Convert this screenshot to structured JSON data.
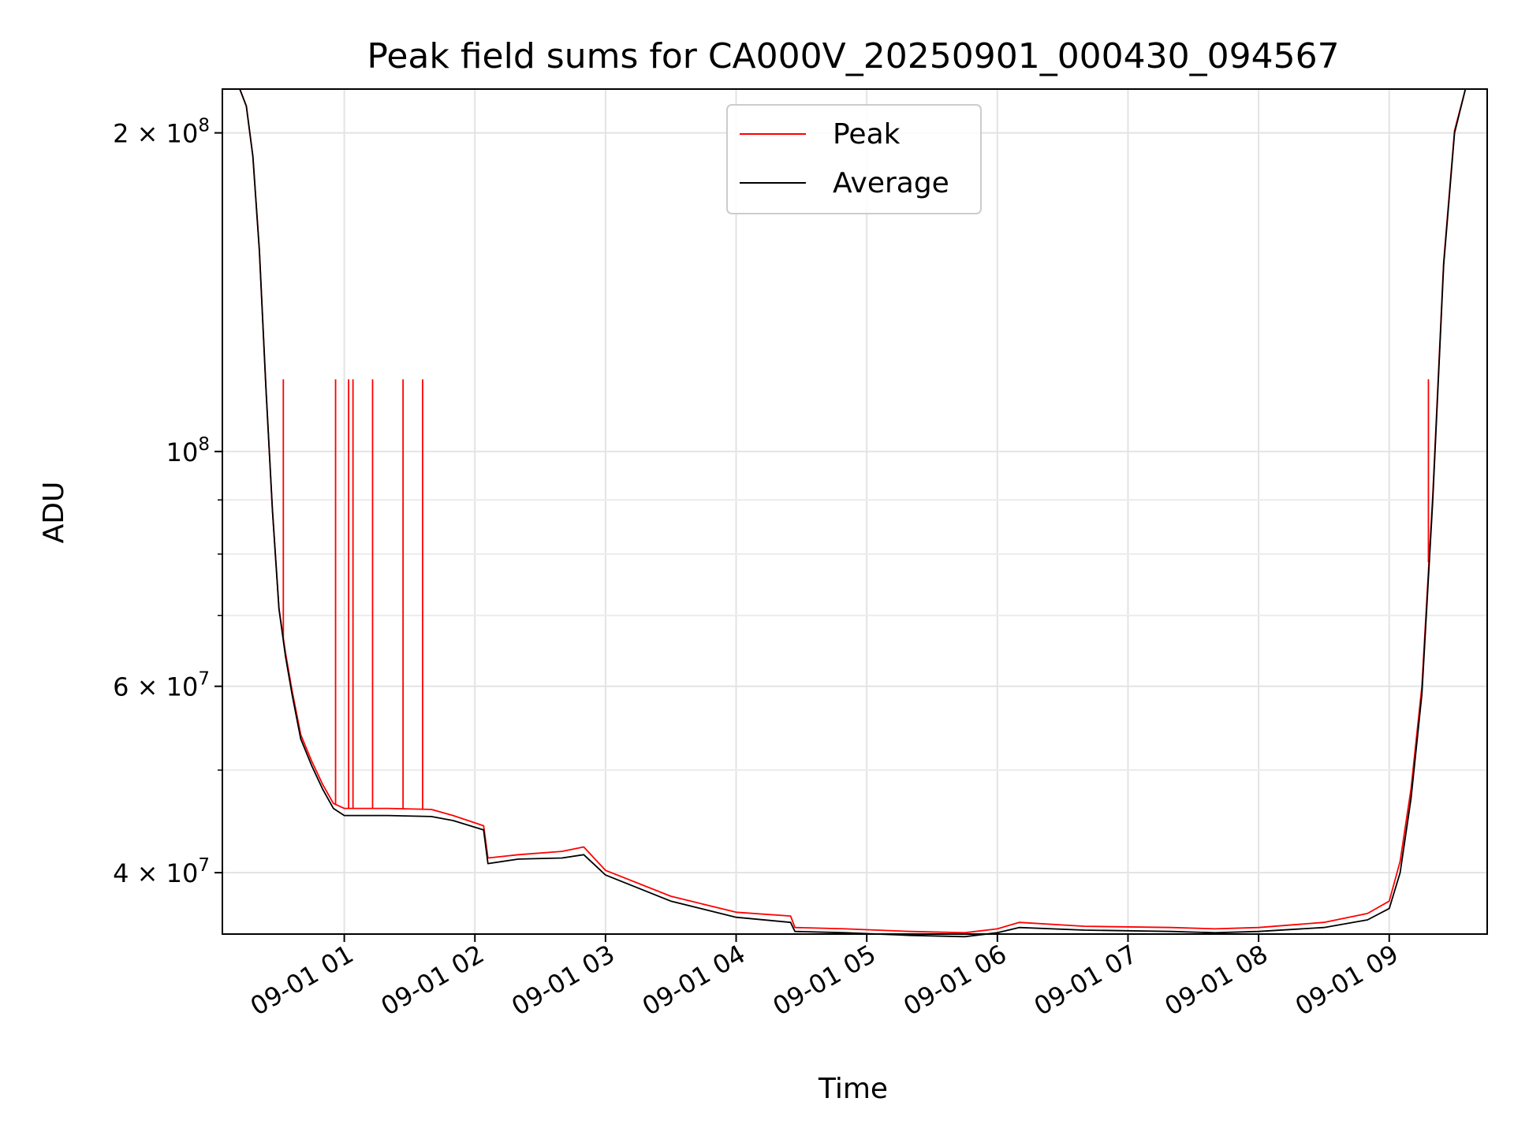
{
  "chart_data": {
    "type": "line",
    "title": "Peak field sums for CA000V_20250901_000430_094567",
    "xlabel": "Time",
    "ylabel": "ADU",
    "xlim": [
      "2025-09-01 00:04",
      "2025-09-01 09:45"
    ],
    "ylim": [
      35000000,
      220000000
    ],
    "yscale": "log",
    "grid": true,
    "legend": {
      "location": "upper center"
    },
    "x_ticks": [
      {
        "value": "2025-09-01 01:00",
        "label": "09-01 01"
      },
      {
        "value": "2025-09-01 02:00",
        "label": "09-01 02"
      },
      {
        "value": "2025-09-01 03:00",
        "label": "09-01 03"
      },
      {
        "value": "2025-09-01 04:00",
        "label": "09-01 04"
      },
      {
        "value": "2025-09-01 05:00",
        "label": "09-01 05"
      },
      {
        "value": "2025-09-01 06:00",
        "label": "09-01 06"
      },
      {
        "value": "2025-09-01 07:00",
        "label": "09-01 07"
      },
      {
        "value": "2025-09-01 08:00",
        "label": "09-01 08"
      },
      {
        "value": "2025-09-01 09:00",
        "label": "09-01 09"
      }
    ],
    "y_ticks": [
      {
        "value": 40000000,
        "base": "4",
        "exp": "7"
      },
      {
        "value": 60000000,
        "base": "6",
        "exp": "7"
      },
      {
        "value": 100000000,
        "base": "",
        "exp": "8"
      },
      {
        "value": 200000000,
        "base": "2",
        "exp": "8"
      }
    ],
    "y_minor_ticks": [
      50000000,
      70000000,
      80000000,
      90000000
    ],
    "series": [
      {
        "name": "Average",
        "color": "#000000",
        "points": [
          [
            "2025-09-01 00:04",
            220000000
          ],
          [
            "2025-09-01 00:12",
            220000000
          ],
          [
            "2025-09-01 00:15",
            212000000
          ],
          [
            "2025-09-01 00:18",
            190000000
          ],
          [
            "2025-09-01 00:21",
            155000000
          ],
          [
            "2025-09-01 00:24",
            115000000
          ],
          [
            "2025-09-01 00:27",
            88000000
          ],
          [
            "2025-09-01 00:30",
            71000000
          ],
          [
            "2025-09-01 00:33",
            64000000
          ],
          [
            "2025-09-01 00:36",
            59000000
          ],
          [
            "2025-09-01 00:40",
            53500000
          ],
          [
            "2025-09-01 00:45",
            50500000
          ],
          [
            "2025-09-01 00:50",
            48000000
          ],
          [
            "2025-09-01 00:55",
            46000000
          ],
          [
            "2025-09-01 01:00",
            45300000
          ],
          [
            "2025-09-01 01:20",
            45300000
          ],
          [
            "2025-09-01 01:40",
            45200000
          ],
          [
            "2025-09-01 01:50",
            44800000
          ],
          [
            "2025-09-01 02:04",
            43900000
          ],
          [
            "2025-09-01 02:06",
            40800000
          ],
          [
            "2025-09-01 02:20",
            41200000
          ],
          [
            "2025-09-01 02:40",
            41300000
          ],
          [
            "2025-09-01 02:50",
            41600000
          ],
          [
            "2025-09-01 03:00",
            39800000
          ],
          [
            "2025-09-01 03:30",
            37600000
          ],
          [
            "2025-09-01 04:00",
            36300000
          ],
          [
            "2025-09-01 04:25",
            35900000
          ],
          [
            "2025-09-01 04:27",
            35200000
          ],
          [
            "2025-09-01 04:50",
            35100000
          ],
          [
            "2025-09-01 05:20",
            34900000
          ],
          [
            "2025-09-01 05:45",
            34800000
          ],
          [
            "2025-09-01 06:00",
            35100000
          ],
          [
            "2025-09-01 06:10",
            35500000
          ],
          [
            "2025-09-01 06:40",
            35300000
          ],
          [
            "2025-09-01 07:20",
            35200000
          ],
          [
            "2025-09-01 07:40",
            35100000
          ],
          [
            "2025-09-01 08:00",
            35200000
          ],
          [
            "2025-09-01 08:30",
            35500000
          ],
          [
            "2025-09-01 08:50",
            36100000
          ],
          [
            "2025-09-01 09:00",
            37000000
          ],
          [
            "2025-09-01 09:05",
            40000000
          ],
          [
            "2025-09-01 09:10",
            47000000
          ],
          [
            "2025-09-01 09:15",
            59000000
          ],
          [
            "2025-09-01 09:20",
            90000000
          ],
          [
            "2025-09-01 09:25",
            150000000
          ],
          [
            "2025-09-01 09:30",
            200000000
          ],
          [
            "2025-09-01 09:35",
            220000000
          ],
          [
            "2025-09-01 09:40",
            220000000
          ]
        ]
      },
      {
        "name": "Peak",
        "color": "#ff0000",
        "points": [
          [
            "2025-09-01 00:04",
            220000000
          ],
          [
            "2025-09-01 00:12",
            220000000
          ],
          [
            "2025-09-01 00:15",
            212000000
          ],
          [
            "2025-09-01 00:18",
            190000000
          ],
          [
            "2025-09-01 00:21",
            155000000
          ],
          [
            "2025-09-01 00:24",
            115000000
          ],
          [
            "2025-09-01 00:27",
            88000000
          ],
          [
            "2025-09-01 00:30",
            71000000
          ],
          [
            "2025-09-01 00:33",
            64500000
          ],
          [
            "2025-09-01 00:36",
            59500000
          ],
          [
            "2025-09-01 00:40",
            54000000
          ],
          [
            "2025-09-01 00:45",
            51000000
          ],
          [
            "2025-09-01 00:50",
            48500000
          ],
          [
            "2025-09-01 00:55",
            46500000
          ],
          [
            "2025-09-01 01:00",
            46000000
          ],
          [
            "2025-09-01 01:20",
            46000000
          ],
          [
            "2025-09-01 01:40",
            45900000
          ],
          [
            "2025-09-01 01:50",
            45300000
          ],
          [
            "2025-09-01 02:04",
            44300000
          ],
          [
            "2025-09-01 02:06",
            41300000
          ],
          [
            "2025-09-01 02:20",
            41600000
          ],
          [
            "2025-09-01 02:40",
            41900000
          ],
          [
            "2025-09-01 02:50",
            42300000
          ],
          [
            "2025-09-01 03:00",
            40200000
          ],
          [
            "2025-09-01 03:30",
            38000000
          ],
          [
            "2025-09-01 04:00",
            36700000
          ],
          [
            "2025-09-01 04:25",
            36400000
          ],
          [
            "2025-09-01 04:27",
            35500000
          ],
          [
            "2025-09-01 04:50",
            35400000
          ],
          [
            "2025-09-01 05:20",
            35200000
          ],
          [
            "2025-09-01 05:45",
            35100000
          ],
          [
            "2025-09-01 06:00",
            35400000
          ],
          [
            "2025-09-01 06:10",
            35900000
          ],
          [
            "2025-09-01 06:40",
            35600000
          ],
          [
            "2025-09-01 07:20",
            35500000
          ],
          [
            "2025-09-01 07:40",
            35400000
          ],
          [
            "2025-09-01 08:00",
            35500000
          ],
          [
            "2025-09-01 08:30",
            35900000
          ],
          [
            "2025-09-01 08:50",
            36600000
          ],
          [
            "2025-09-01 09:00",
            37600000
          ],
          [
            "2025-09-01 09:05",
            41000000
          ],
          [
            "2025-09-01 09:10",
            48000000
          ],
          [
            "2025-09-01 09:15",
            60000000
          ],
          [
            "2025-09-01 09:20",
            91000000
          ],
          [
            "2025-09-01 09:25",
            151000000
          ],
          [
            "2025-09-01 09:30",
            201000000
          ],
          [
            "2025-09-01 09:35",
            220000000
          ],
          [
            "2025-09-01 09:40",
            220000000
          ]
        ],
        "spikes": [
          [
            "2025-09-01 00:32",
            117000000
          ],
          [
            "2025-09-01 00:56",
            117000000
          ],
          [
            "2025-09-01 01:02",
            117000000
          ],
          [
            "2025-09-01 01:04",
            117000000
          ],
          [
            "2025-09-01 01:13",
            117000000
          ],
          [
            "2025-09-01 01:27",
            117000000
          ],
          [
            "2025-09-01 01:36",
            117000000
          ],
          [
            "2025-09-01 09:18",
            117000000
          ]
        ]
      }
    ]
  }
}
